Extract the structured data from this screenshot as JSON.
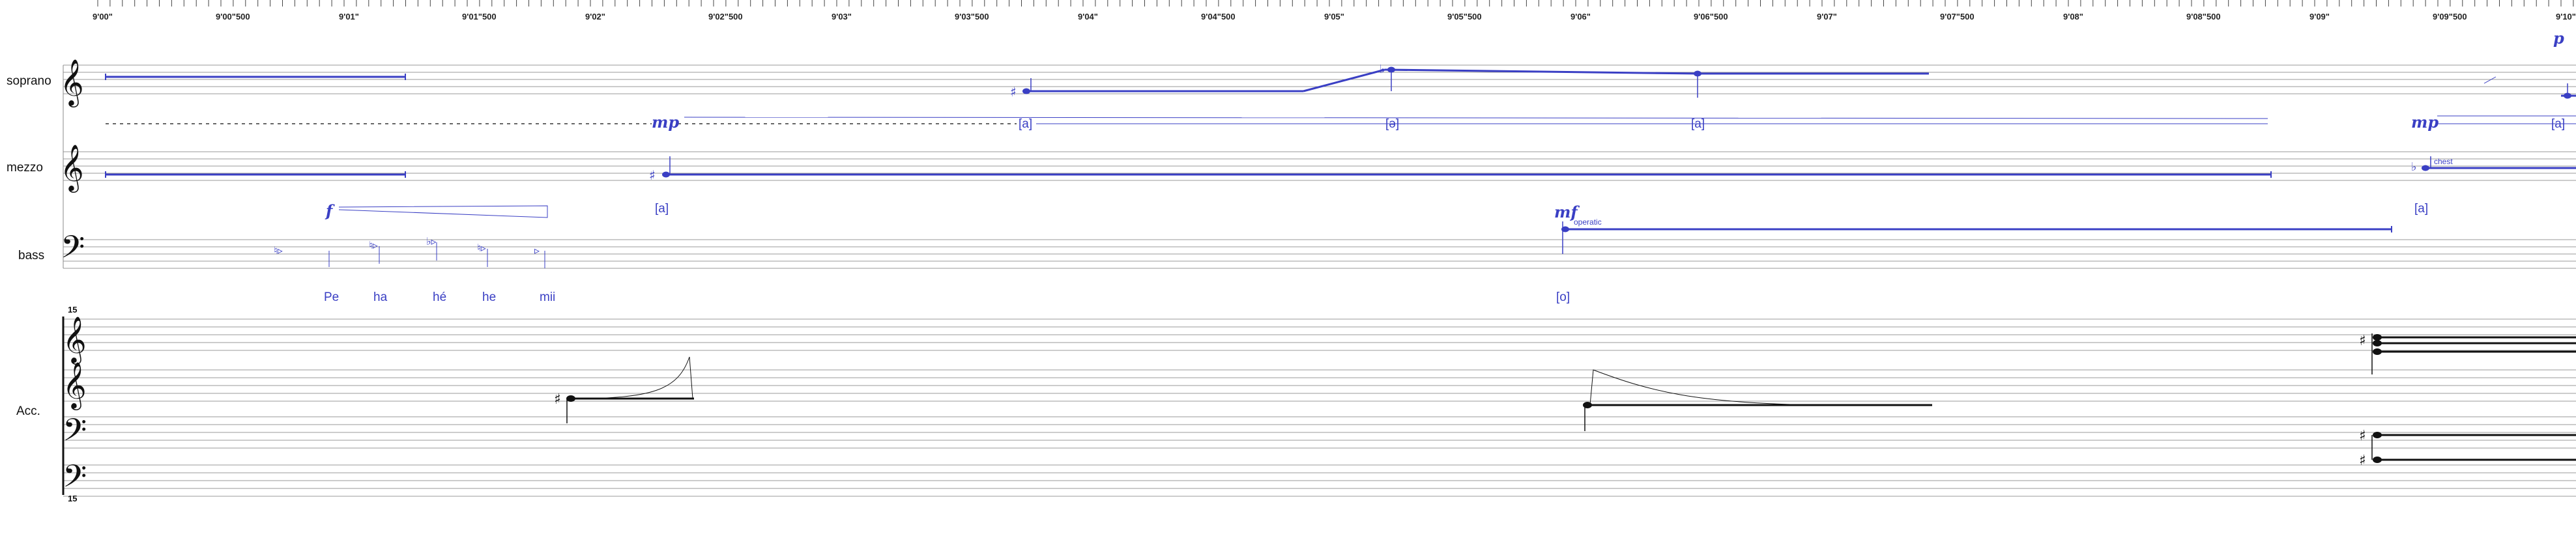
{
  "timeline": {
    "ticks": [
      "9'00\"",
      "9'00\"500",
      "9'01\"",
      "9'01\"500",
      "9'02\"",
      "9'02\"500",
      "9'03\"",
      "9'03\"500",
      "9'04\"",
      "9'04\"500",
      "9'05\"",
      "9'05\"500",
      "9'06\"",
      "9'06\"500",
      "9'07\"",
      "9'07\"500",
      "9'08\"",
      "9'08\"500",
      "9'09\"",
      "9'09\"500",
      "9'10\""
    ]
  },
  "staves": {
    "soprano": {
      "name": "soprano",
      "dynamics": [
        "p"
      ],
      "lyrics": [
        "[a]",
        "[ə]",
        "[a]",
        "[a]"
      ]
    },
    "mezzo": {
      "name": "mezzo",
      "dynamics": [
        "mp",
        "mp"
      ],
      "lyrics": [
        "[a]",
        "[a]"
      ],
      "techniques": [
        "chest"
      ]
    },
    "bass": {
      "name": "bass",
      "dynamics": [
        "f",
        "mf"
      ],
      "lyrics": [
        "Pe",
        "ha",
        "hé",
        "he",
        "mii",
        "[o]"
      ],
      "techniques": [
        "operatic"
      ]
    },
    "accordion": {
      "name": "Acc.",
      "octave_top": "15",
      "octave_bottom": "15"
    }
  },
  "colors": {
    "voice": "#3a3fc4",
    "staff": "#9a9a9a",
    "ink": "#111111"
  }
}
